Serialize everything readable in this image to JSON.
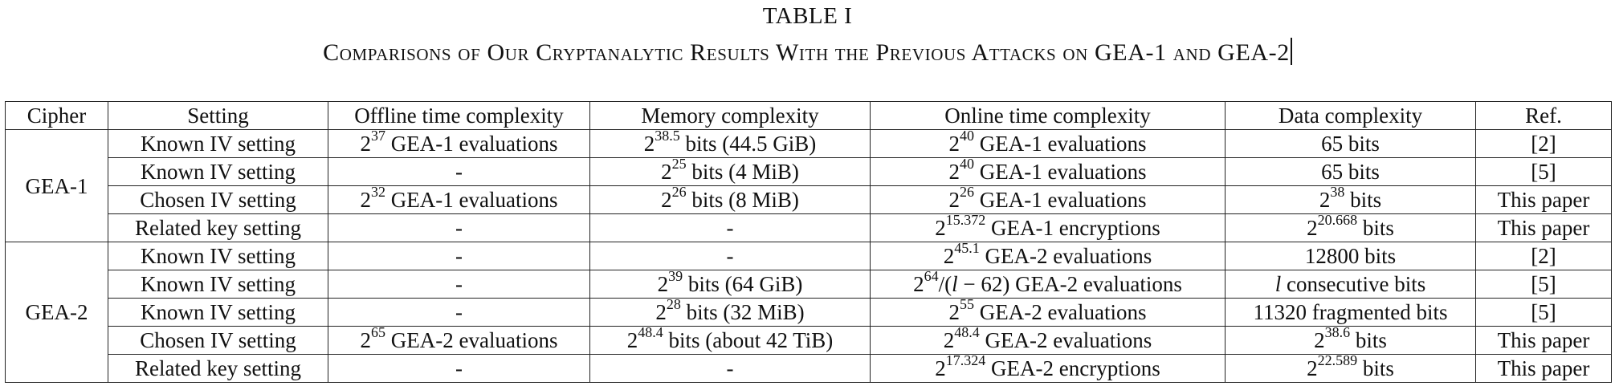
{
  "caption": {
    "label": "TABLE I",
    "title": "Comparisons of Our Cryptanalytic Results With the Previous Attacks on GEA-1 and GEA-2"
  },
  "table": {
    "columns": [
      "Cipher",
      "Setting",
      "Offline time complexity",
      "Memory complexity",
      "Online time complexity",
      "Data complexity",
      "Ref."
    ],
    "groups": [
      {
        "cipher": "GEA-1",
        "rows": [
          {
            "setting": "Known IV setting",
            "offline": {
              "base": "2",
              "exp": "37",
              "rest": " GEA-1 evaluations"
            },
            "memory": {
              "base": "2",
              "exp": "38.5",
              "rest": " bits (44.5 GiB)"
            },
            "online": {
              "base": "2",
              "exp": "40",
              "rest": " GEA-1 evaluations"
            },
            "data": {
              "base": "",
              "exp": "",
              "rest": "65 bits"
            },
            "ref": "[2]"
          },
          {
            "setting": "Known IV setting",
            "offline": {
              "base": "",
              "exp": "",
              "rest": "-"
            },
            "memory": {
              "base": "2",
              "exp": "25",
              "rest": " bits (4 MiB)"
            },
            "online": {
              "base": "2",
              "exp": "40",
              "rest": " GEA-1 evaluations"
            },
            "data": {
              "base": "",
              "exp": "",
              "rest": "65 bits"
            },
            "ref": "[5]"
          },
          {
            "setting": "Chosen IV setting",
            "offline": {
              "base": "2",
              "exp": "32",
              "rest": " GEA-1 evaluations"
            },
            "memory": {
              "base": "2",
              "exp": "26",
              "rest": " bits (8 MiB)"
            },
            "online": {
              "base": "2",
              "exp": "26",
              "rest": " GEA-1 evaluations"
            },
            "data": {
              "base": "2",
              "exp": "38",
              "rest": " bits"
            },
            "ref": "This paper"
          },
          {
            "setting": "Related key setting",
            "offline": {
              "base": "",
              "exp": "",
              "rest": "-"
            },
            "memory": {
              "base": "",
              "exp": "",
              "rest": "-"
            },
            "online": {
              "base": "2",
              "exp": "15.372",
              "rest": " GEA-1 encryptions"
            },
            "data": {
              "base": "2",
              "exp": "20.668",
              "rest": " bits"
            },
            "ref": "This paper"
          }
        ]
      },
      {
        "cipher": "GEA-2",
        "rows": [
          {
            "setting": "Known IV setting",
            "offline": {
              "base": "",
              "exp": "",
              "rest": "-"
            },
            "memory": {
              "base": "",
              "exp": "",
              "rest": "-"
            },
            "online": {
              "base": "2",
              "exp": "45.1",
              "rest": " GEA-2 evaluations"
            },
            "data": {
              "base": "",
              "exp": "",
              "rest": "12800 bits"
            },
            "ref": "[2]"
          },
          {
            "setting": "Known IV setting",
            "offline": {
              "base": "",
              "exp": "",
              "rest": "-"
            },
            "memory": {
              "base": "2",
              "exp": "39",
              "rest": " bits (64 GiB)"
            },
            "online": {
              "base": "2",
              "exp": "64",
              "rest": "/(l − 62) GEA-2 evaluations"
            },
            "data": {
              "base": "",
              "exp": "",
              "rest": "l consecutive bits"
            },
            "ref": "[5]"
          },
          {
            "setting": "Known IV setting",
            "offline": {
              "base": "",
              "exp": "",
              "rest": "-"
            },
            "memory": {
              "base": "2",
              "exp": "28",
              "rest": " bits (32 MiB)"
            },
            "online": {
              "base": "2",
              "exp": "55",
              "rest": " GEA-2 evaluations"
            },
            "data": {
              "base": "",
              "exp": "",
              "rest": "11320 fragmented bits"
            },
            "ref": "[5]"
          },
          {
            "setting": "Chosen IV setting",
            "offline": {
              "base": "2",
              "exp": "65",
              "rest": " GEA-2 evaluations"
            },
            "memory": {
              "base": "2",
              "exp": "48.4",
              "rest": " bits (about 42 TiB)"
            },
            "online": {
              "base": "2",
              "exp": "48.4",
              "rest": " GEA-2 evaluations"
            },
            "data": {
              "base": "2",
              "exp": "38.6",
              "rest": " bits"
            },
            "ref": "This paper"
          },
          {
            "setting": "Related key setting",
            "offline": {
              "base": "",
              "exp": "",
              "rest": "-"
            },
            "memory": {
              "base": "",
              "exp": "",
              "rest": "-"
            },
            "online": {
              "base": "2",
              "exp": "17.324",
              "rest": " GEA-2 encryptions"
            },
            "data": {
              "base": "2",
              "exp": "22.589",
              "rest": " bits"
            },
            "ref": "This paper"
          }
        ]
      }
    ]
  }
}
